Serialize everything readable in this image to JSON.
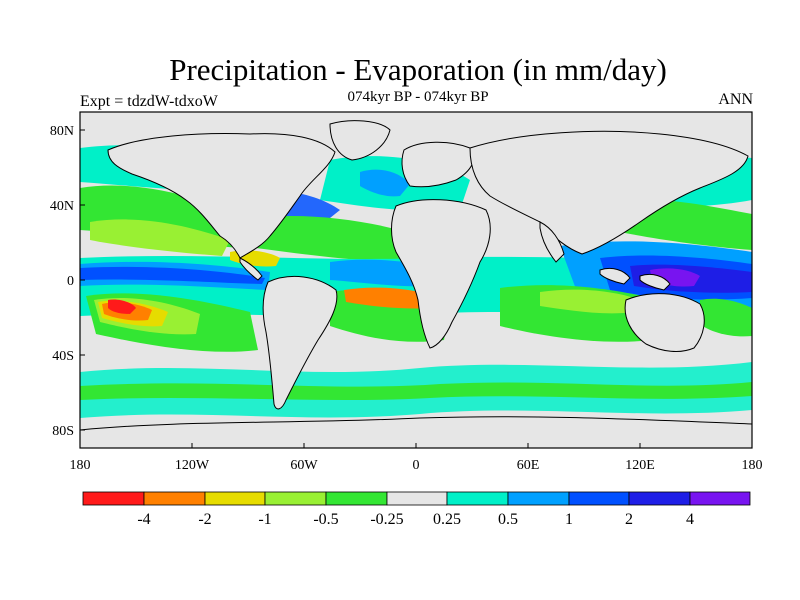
{
  "title": "Precipitation - Evaporation (in mm/day)",
  "subtitle": "074kyr BP - 074kyr BP",
  "experiment_label": "Expt = tdzdW-tdxoW",
  "season_label": "ANN",
  "latitude_ticks": [
    "80N",
    "40N",
    "0",
    "40S",
    "80S"
  ],
  "longitude_ticks": [
    "180",
    "120W",
    "60W",
    "0",
    "60E",
    "120E",
    "180"
  ],
  "colorbar": {
    "colors": [
      "#ff1a1a",
      "#ff8000",
      "#e6dc00",
      "#99f033",
      "#33e633",
      "#e6e6e6",
      "#00f0c8",
      "#00a0ff",
      "#0050ff",
      "#1e1ee6",
      "#7814f0"
    ],
    "labels": [
      "-4",
      "-2",
      "-1",
      "-0.5",
      "-0.25",
      "0.25",
      "0.5",
      "1",
      "2",
      "4"
    ]
  },
  "colors": {
    "background": "#e6e6e6",
    "coast": "#000000"
  }
}
